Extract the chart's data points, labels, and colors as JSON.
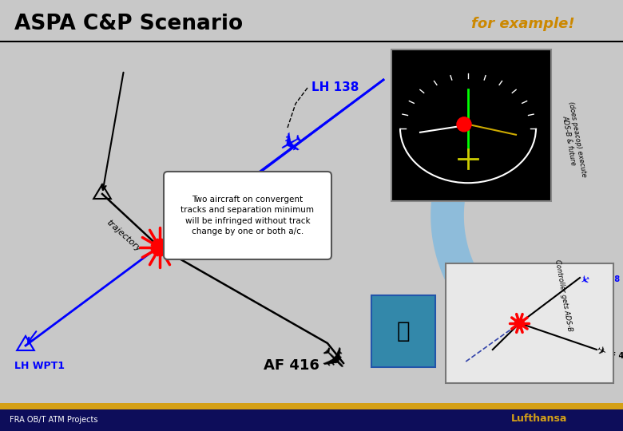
{
  "title": "ASPA C&P Scenario",
  "subtitle": "for example!",
  "bg_color": "#c8c8c8",
  "title_color": "#000000",
  "subtitle_color": "#cc8800",
  "footer_bg": "#0d0d5a",
  "footer_bar": "#d4a017",
  "footer_left": "FRA OB/T ATM Projects",
  "footer_right": "Lufthansa",
  "lh138_label": "LH 138",
  "lh_wpt1_label": "LH WPT1",
  "af416_label": "AF 416",
  "trajectory_label": "trajectory",
  "text_box": "Two aircraft on convergent\ntracks and separation minimum\nwill be infringed without track\nchange by one or both a/c."
}
